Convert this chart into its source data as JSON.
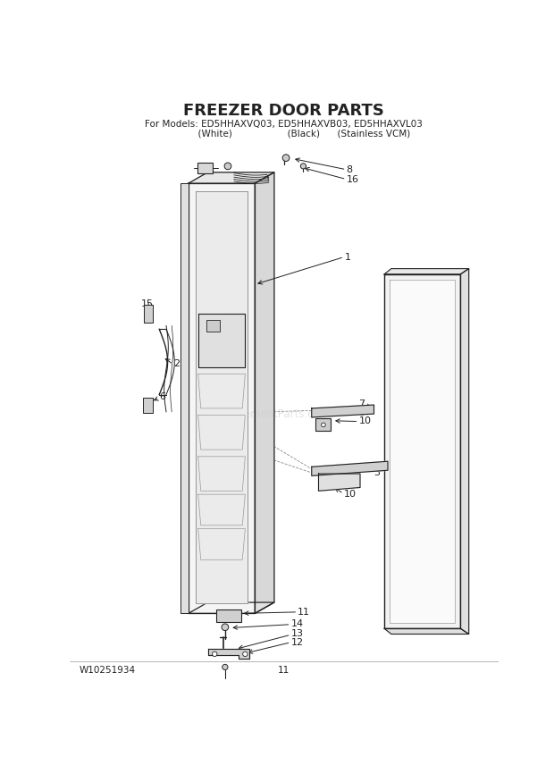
{
  "title": "FREEZER DOOR PARTS",
  "subtitle1": "For Models: ED5HHAXVQ03, ED5HHAXVB03, ED5HHAXVL03",
  "subtitle2": "              (White)                   (Black)      (Stainless VCM)",
  "part_number": "W10251934",
  "page_number": "11",
  "bg_color": "#ffffff",
  "lc": "#222222",
  "watermark": "eReplacementParts.com"
}
